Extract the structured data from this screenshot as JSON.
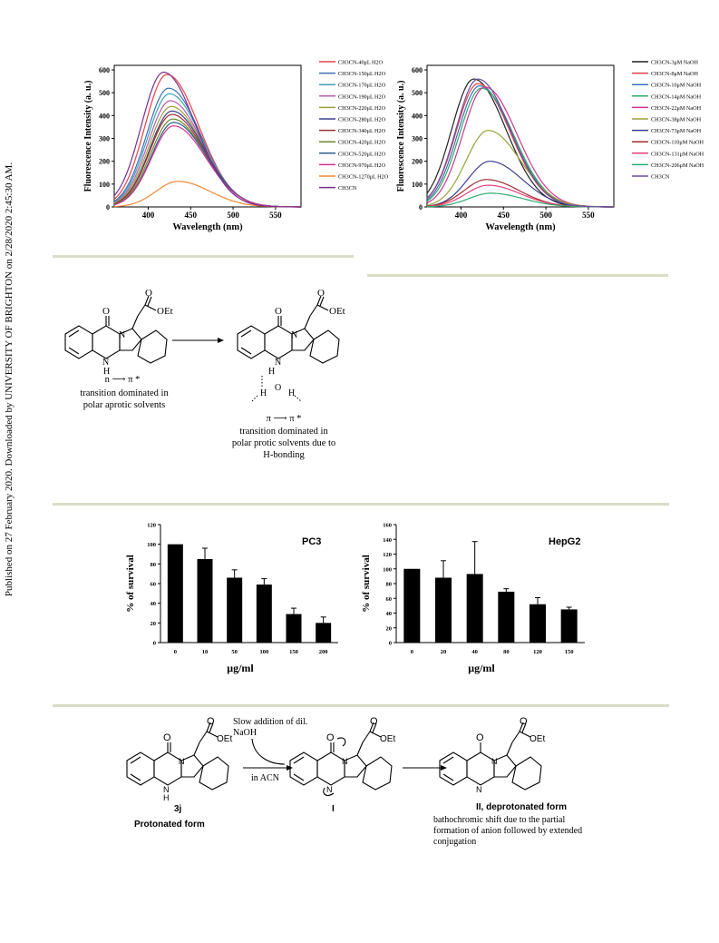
{
  "sidebar_note": "Published on 27 February 2020. Downloaded by UNIVERSITY OF BRIGHTON on 2/28/2020 2:45:30 AM.",
  "chart_data": [
    {
      "type": "line",
      "xlabel": "Wavelength (nm)",
      "ylabel": "Fluorescence Intensity (a. u.)",
      "xlim": [
        360,
        580
      ],
      "ylim": [
        0,
        620
      ],
      "xticks": [
        400,
        450,
        500,
        550
      ],
      "yticks": [
        0,
        100,
        200,
        300,
        400,
        500,
        600
      ],
      "legend": "right",
      "series": [
        {
          "name": "CH3CN-40μL H2O",
          "color": "#e8424a",
          "peak": 580,
          "center": 422
        },
        {
          "name": "CH3CN-150μL H2O",
          "color": "#3f6fb5",
          "peak": 520,
          "center": 424
        },
        {
          "name": "CH3CN-170μL H2O",
          "color": "#3aa3b8",
          "peak": 495,
          "center": 425
        },
        {
          "name": "CH3CN-190μL H2O",
          "color": "#b85cb0",
          "peak": 465,
          "center": 426
        },
        {
          "name": "CH3CN-220μL H2O",
          "color": "#9aa13a",
          "peak": 440,
          "center": 427
        },
        {
          "name": "CH3CN-280μL H2O",
          "color": "#3b3e8f",
          "peak": 420,
          "center": 428
        },
        {
          "name": "CH3CN-340μL H2O",
          "color": "#a12f2f",
          "peak": 405,
          "center": 428
        },
        {
          "name": "CH3CN-420μL H2O",
          "color": "#6b8a2f",
          "peak": 385,
          "center": 429
        },
        {
          "name": "CH3CN-520μL H2O",
          "color": "#2f5f8f",
          "peak": 370,
          "center": 430
        },
        {
          "name": "CH3CN-970μL H2O",
          "color": "#d0358f",
          "peak": 355,
          "center": 430
        },
        {
          "name": "CH3CN-1270μL H2O",
          "color": "#f08a30",
          "peak": 112,
          "center": 435
        },
        {
          "name": "CH3CN",
          "color": "#7a2f8f",
          "peak": 590,
          "center": 418
        }
      ]
    },
    {
      "type": "line",
      "xlabel": "Wavelength (nm)",
      "ylabel": "Fluorescence Intensity (a. u.)",
      "xlim": [
        360,
        580
      ],
      "ylim": [
        0,
        620
      ],
      "xticks": [
        400,
        450,
        500,
        550
      ],
      "yticks": [
        0,
        100,
        200,
        300,
        400,
        500,
        600
      ],
      "legend": "right",
      "series": [
        {
          "name": "CH3CN-3μM NaOH",
          "color": "#222222",
          "peak": 560,
          "center": 415
        },
        {
          "name": "CH3CN-8μM NaOH",
          "color": "#e8424a",
          "peak": 540,
          "center": 420
        },
        {
          "name": "CH3CN-10μM NaOH",
          "color": "#3f6fb5",
          "peak": 530,
          "center": 422
        },
        {
          "name": "CH3CN-14μM NaOH",
          "color": "#2faa6f",
          "peak": 520,
          "center": 424
        },
        {
          "name": "CH3CN-22μM NaOH",
          "color": "#d0358f",
          "peak": 525,
          "center": 428
        },
        {
          "name": "CH3CN-38μM NaOH",
          "color": "#9aa13a",
          "peak": 335,
          "center": 432
        },
        {
          "name": "CH3CN-73μM NaOH",
          "color": "#3b3e8f",
          "peak": 200,
          "center": 434
        },
        {
          "name": "CH3CN-110μM NaOH",
          "color": "#a12f2f",
          "peak": 120,
          "center": 430
        },
        {
          "name": "CH3CN-131μM NaOH",
          "color": "#e8427a",
          "peak": 95,
          "center": 432
        },
        {
          "name": "CH3CN-206μM NaOH",
          "color": "#2faa6f",
          "peak": 60,
          "center": 435
        },
        {
          "name": "CH3CN",
          "color": "#6a4fa0",
          "peak": 560,
          "center": 420
        }
      ]
    },
    {
      "type": "bar",
      "title": "PC3",
      "xlabel": "μg/ml",
      "ylabel": "% of survival",
      "ylim": [
        0,
        120
      ],
      "yticks": [
        0,
        20,
        40,
        60,
        80,
        100,
        120
      ],
      "categories": [
        "0",
        "10",
        "50",
        "100",
        "150",
        "200"
      ],
      "values": [
        100,
        85,
        66,
        59,
        29,
        20
      ],
      "errors": [
        0,
        11,
        8,
        6,
        6,
        6
      ]
    },
    {
      "type": "bar",
      "title": "HepG2",
      "xlabel": "μg/ml",
      "ylabel": "% of survival",
      "ylim": [
        0,
        160
      ],
      "yticks": [
        0,
        20,
        40,
        60,
        80,
        100,
        120,
        140,
        160
      ],
      "categories": [
        "0",
        "20",
        "40",
        "80",
        "120",
        "150"
      ],
      "values": [
        100,
        88,
        93,
        69,
        52,
        45
      ],
      "errors": [
        0,
        23,
        44,
        4,
        9,
        3
      ]
    }
  ],
  "scheme1": {
    "ester": "OEt",
    "carbonyl_o": "O",
    "nh_n": "N",
    "nh_h": "H",
    "transition1": "n ⟶ π *",
    "caption1": [
      "transition dominated in",
      "polar aprotic solvents"
    ],
    "water_h": "H",
    "water_o": "O",
    "transition2": "π ⟶ π *",
    "caption2": [
      "transition dominated in",
      "polar protic solvents due to",
      "H-bonding"
    ]
  },
  "scheme2": {
    "reagent": [
      "Slow addition of dil.",
      "NaOH"
    ],
    "solvent": "in ACN",
    "ester": "OEt",
    "label_3j": "3j",
    "label_3j_sub": "Protonated form",
    "label_I": "I",
    "label_II": "II, deprotonated form",
    "caption": [
      "bathochromic shift due to the partial",
      "formation of anion followed by extended",
      "conjugation"
    ]
  }
}
